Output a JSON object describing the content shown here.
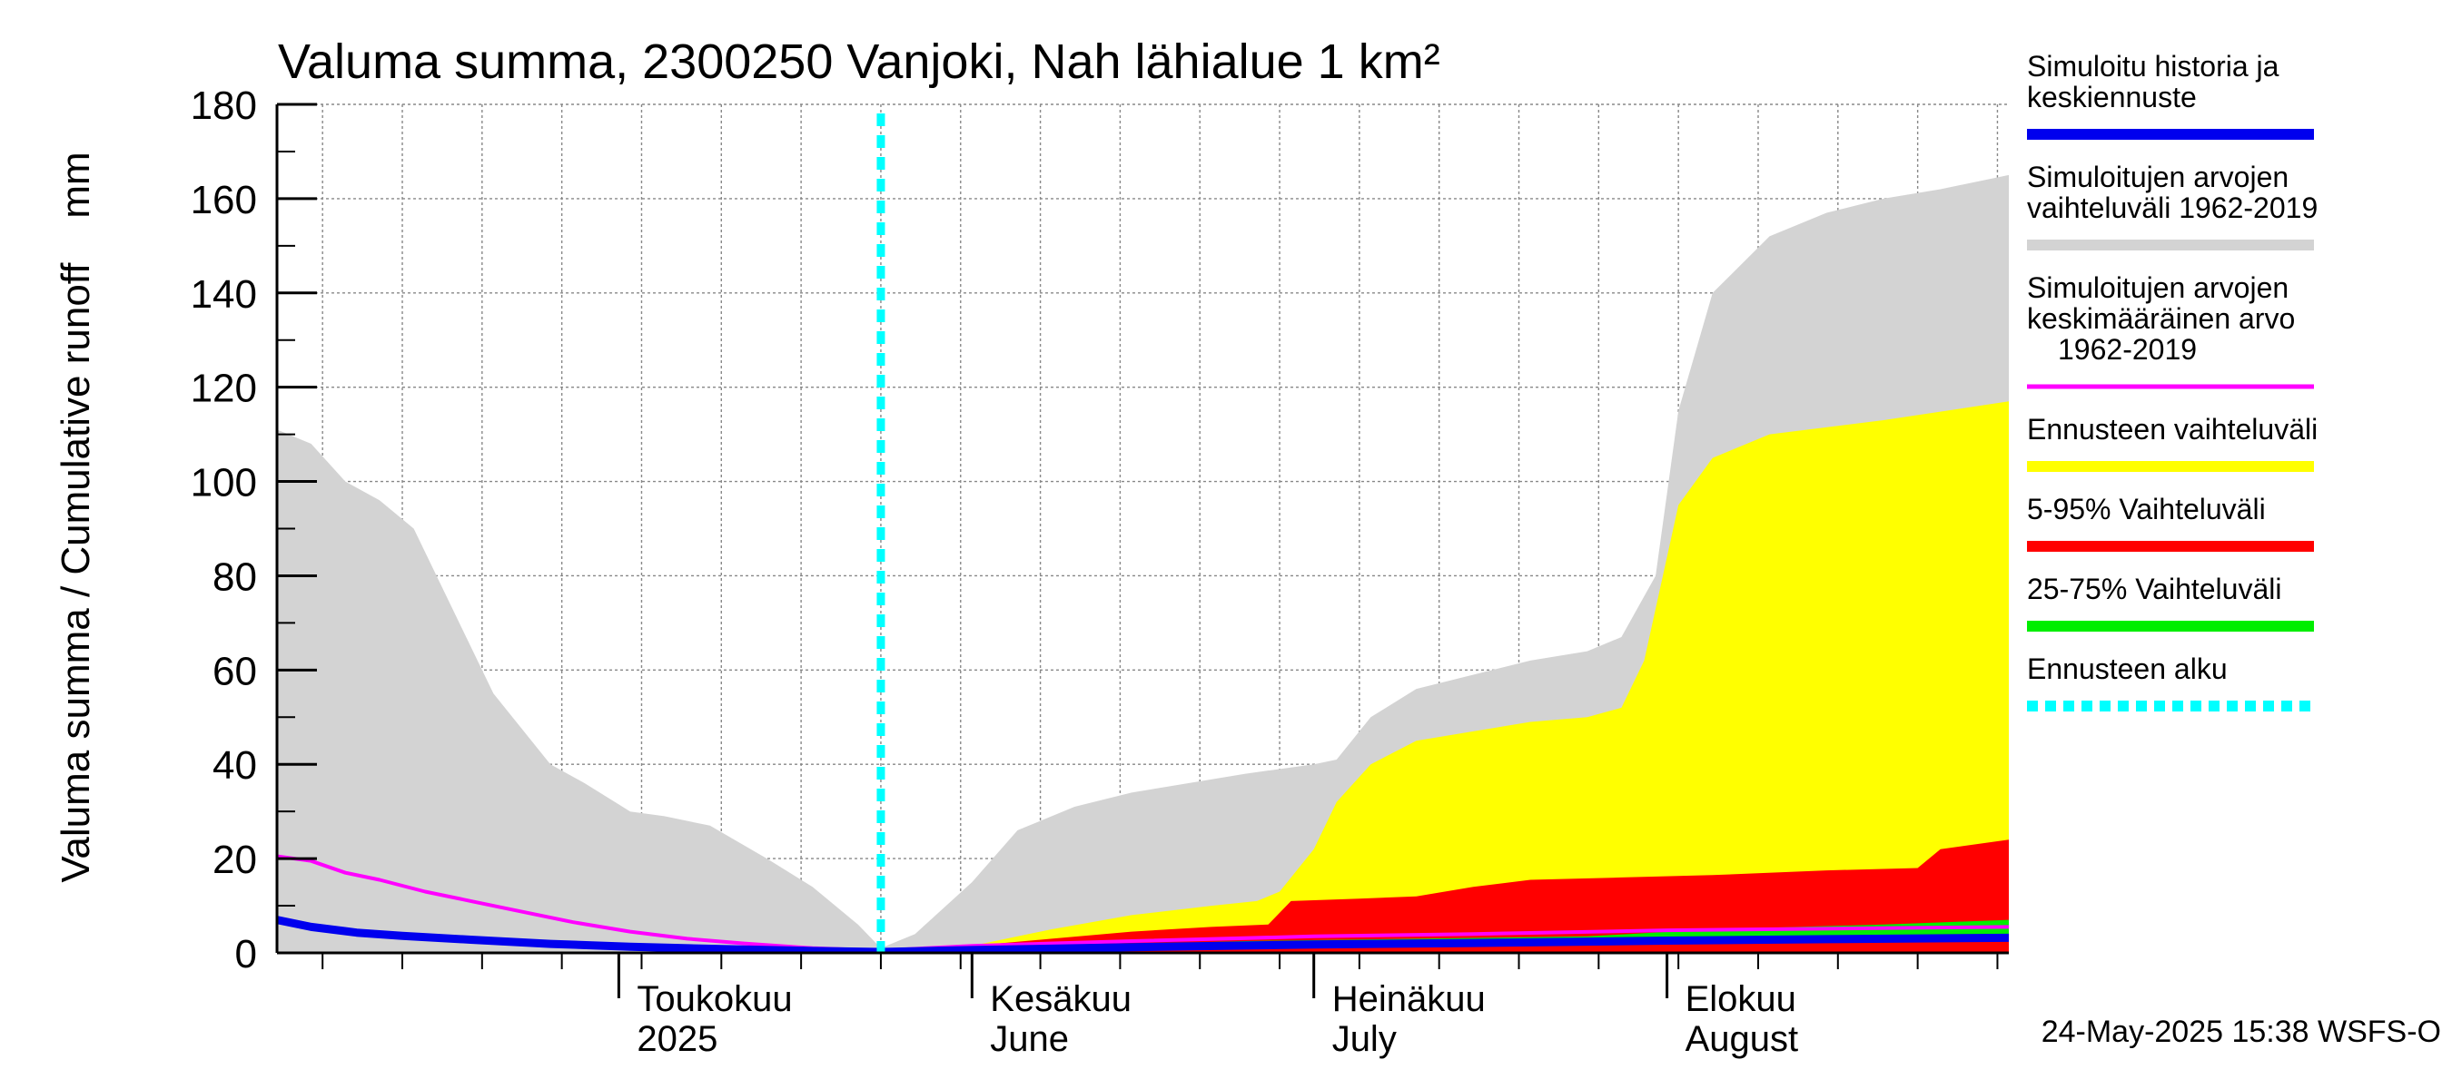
{
  "chart_data": {
    "type": "area",
    "title": "Valuma summa, 2300250 Vanjoki, Nah lähialue 1 km²",
    "ylabel": "Valuma summa / Cumulative runoff    mm",
    "ylim": [
      0,
      180
    ],
    "yticks": [
      0,
      20,
      40,
      60,
      80,
      100,
      120,
      140,
      160,
      180
    ],
    "xlim": [
      "2025-04-01",
      "2025-08-31"
    ],
    "grid": true,
    "forecast_start": "2025-05-24",
    "month_labels": [
      {
        "label": "Toukokuu",
        "sub": "2025",
        "date": "2025-05-01"
      },
      {
        "label": "Kesäkuu",
        "sub": "June",
        "date": "2025-06-01"
      },
      {
        "label": "Heinäkuu",
        "sub": "July",
        "date": "2025-07-01"
      },
      {
        "label": "Elokuu",
        "sub": "August",
        "date": "2025-08-01"
      }
    ],
    "legend_position": "right",
    "legend": [
      {
        "label": "Simuloitu historia ja keskiennuste",
        "lines": [
          "Simuloitu historia ja",
          "keskiennuste"
        ],
        "color": "#0000ee",
        "style": "line"
      },
      {
        "label": "Simuloitujen arvojen vaihteluväli 1962-2019",
        "lines": [
          "Simuloitujen arvojen",
          "vaihteluväli 1962-2019"
        ],
        "color": "#d3d3d3",
        "style": "line"
      },
      {
        "label": "Simuloitujen arvojen keskimääräinen arvo 1962-2019",
        "lines": [
          "Simuloitujen arvojen",
          "keskimääräinen arvo",
          "1962-2019"
        ],
        "color": "#ff00ff",
        "style": "thin"
      },
      {
        "label": "Ennusteen vaihteluväli",
        "lines": [
          "Ennusteen vaihteluväli"
        ],
        "color": "#ffff00",
        "style": "line"
      },
      {
        "label": "5-95% Vaihteluväli",
        "lines": [
          "5-95% Vaihteluväli"
        ],
        "color": "#ff0000",
        "style": "line"
      },
      {
        "label": "25-75% Vaihteluväli",
        "lines": [
          "25-75% Vaihteluväli"
        ],
        "color": "#00ee00",
        "style": "line"
      },
      {
        "label": "Ennusteen alku",
        "lines": [
          "Ennusteen alku"
        ],
        "color": "#00ffff",
        "style": "dashed"
      }
    ],
    "series": [
      {
        "name": "Simuloitujen arvojen vaihteluväli 1962-2019",
        "kind": "band",
        "color": "#d3d3d3",
        "x": [
          "2025-04-01",
          "2025-04-04",
          "2025-04-07",
          "2025-04-10",
          "2025-04-13",
          "2025-04-16",
          "2025-04-20",
          "2025-04-25",
          "2025-04-28",
          "2025-05-02",
          "2025-05-05",
          "2025-05-09",
          "2025-05-14",
          "2025-05-18",
          "2025-05-22",
          "2025-05-24",
          "2025-05-27",
          "2025-06-01",
          "2025-06-05",
          "2025-06-10",
          "2025-06-15",
          "2025-06-20",
          "2025-06-25",
          "2025-07-01",
          "2025-07-03",
          "2025-07-06",
          "2025-07-10",
          "2025-07-15",
          "2025-07-20",
          "2025-07-25",
          "2025-07-28",
          "2025-07-31",
          "2025-08-02",
          "2025-08-05",
          "2025-08-10",
          "2025-08-15",
          "2025-08-20",
          "2025-08-25",
          "2025-08-31"
        ],
        "upper": [
          111,
          108,
          100,
          96,
          90,
          75,
          55,
          40,
          36,
          30,
          29,
          27,
          20,
          14,
          6,
          1,
          4,
          15,
          26,
          31,
          34,
          36,
          38,
          40,
          41,
          50,
          56,
          59,
          62,
          64,
          67,
          80,
          115,
          140,
          152,
          157,
          160,
          162,
          165
        ],
        "lower": [
          0,
          0,
          0,
          0,
          0,
          0,
          0,
          0,
          0,
          0,
          0,
          0,
          0,
          0,
          0,
          0,
          0,
          0,
          0,
          0,
          0,
          0,
          0,
          0,
          0,
          0,
          0,
          0,
          0,
          0,
          0,
          0,
          0,
          0,
          0,
          0,
          0,
          0,
          0
        ]
      },
      {
        "name": "Ennusteen vaihteluväli",
        "kind": "band",
        "color": "#ffff00",
        "x": [
          "2025-05-24",
          "2025-06-01",
          "2025-06-08",
          "2025-06-15",
          "2025-06-22",
          "2025-06-26",
          "2025-06-28",
          "2025-07-01",
          "2025-07-03",
          "2025-07-06",
          "2025-07-10",
          "2025-07-15",
          "2025-07-20",
          "2025-07-25",
          "2025-07-28",
          "2025-07-30",
          "2025-08-02",
          "2025-08-05",
          "2025-08-10",
          "2025-08-20",
          "2025-08-31"
        ],
        "upper": [
          0.5,
          1.5,
          5,
          8,
          10,
          11,
          13,
          22,
          32,
          40,
          45,
          47,
          49,
          50,
          52,
          62,
          95,
          105,
          110,
          113,
          117
        ],
        "lower": [
          0,
          0,
          0,
          0,
          0,
          0,
          0,
          0,
          0,
          0,
          0,
          0,
          0,
          0,
          0,
          0,
          0,
          0,
          0,
          0,
          0
        ]
      },
      {
        "name": "5-95% Vaihteluväli",
        "kind": "band",
        "color": "#ff0000",
        "x": [
          "2025-05-24",
          "2025-06-01",
          "2025-06-08",
          "2025-06-15",
          "2025-06-22",
          "2025-06-27",
          "2025-06-29",
          "2025-07-05",
          "2025-07-10",
          "2025-07-15",
          "2025-07-20",
          "2025-07-28",
          "2025-08-05",
          "2025-08-15",
          "2025-08-23",
          "2025-08-25",
          "2025-08-31"
        ],
        "upper": [
          0.3,
          1.5,
          3,
          4.5,
          5.5,
          6,
          11,
          11.5,
          12,
          14,
          15.5,
          16,
          16.5,
          17.5,
          18,
          22,
          24
        ],
        "lower": [
          0,
          0,
          0,
          0,
          0,
          0,
          0,
          0,
          0,
          0,
          0,
          0,
          0,
          0,
          0,
          0,
          0
        ]
      },
      {
        "name": "25-75% Vaihteluväli",
        "kind": "band",
        "color": "#00ee00",
        "x": [
          "2025-05-24",
          "2025-06-10",
          "2025-06-25",
          "2025-07-10",
          "2025-07-25",
          "2025-08-05",
          "2025-08-20",
          "2025-08-31"
        ],
        "upper": [
          0.2,
          1.5,
          2.5,
          3,
          3.5,
          5,
          6,
          7
        ],
        "lower": [
          0,
          0.8,
          1.5,
          2,
          2.5,
          2.8,
          3,
          3.2
        ]
      },
      {
        "name": "Simuloitujen arvojen keskimääräinen arvo 1962-2019",
        "kind": "line",
        "color": "#ff00ff",
        "x": [
          "2025-04-01",
          "2025-04-04",
          "2025-04-07",
          "2025-04-10",
          "2025-04-14",
          "2025-04-18",
          "2025-04-22",
          "2025-04-27",
          "2025-05-02",
          "2025-05-07",
          "2025-05-12",
          "2025-05-18",
          "2025-05-24",
          "2025-06-01",
          "2025-06-15",
          "2025-07-01",
          "2025-07-15",
          "2025-08-01",
          "2025-08-31"
        ],
        "values": [
          20.5,
          19.5,
          17,
          15.5,
          13,
          11,
          9,
          6.5,
          4.5,
          3,
          2,
          1,
          0.5,
          1.5,
          2.5,
          3.5,
          4,
          4.8,
          5.5
        ]
      },
      {
        "name": "Simuloitu historia ja keskiennuste",
        "kind": "line",
        "color": "#0000ee",
        "x": [
          "2025-04-01",
          "2025-04-04",
          "2025-04-08",
          "2025-04-12",
          "2025-04-18",
          "2025-04-25",
          "2025-05-02",
          "2025-05-10",
          "2025-05-18",
          "2025-05-24",
          "2025-06-01",
          "2025-06-15",
          "2025-07-01",
          "2025-07-15",
          "2025-08-01",
          "2025-08-15",
          "2025-08-31"
        ],
        "values": [
          7,
          5.5,
          4.3,
          3.6,
          2.8,
          1.9,
          1.3,
          0.8,
          0.4,
          0.2,
          0.6,
          1.2,
          1.8,
          2.1,
          2.6,
          2.9,
          3.2
        ]
      }
    ]
  },
  "footer": {
    "timestamp": "24-May-2025 15:38 WSFS-O"
  }
}
